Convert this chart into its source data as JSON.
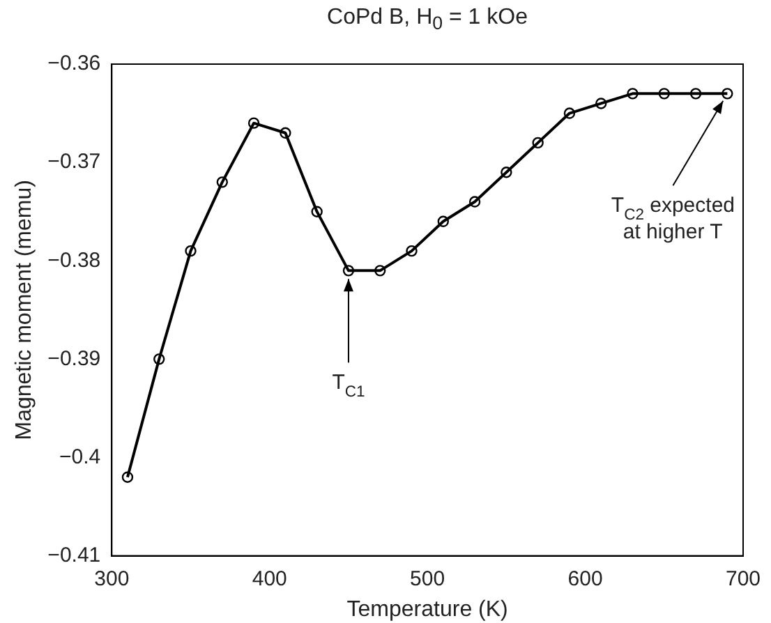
{
  "chart_data": {
    "type": "line",
    "title": "CoPd B, H$_{0}$ = 1 kOe",
    "xlabel": "Temperature (K)",
    "ylabel": "Magnetic moment (memu)",
    "x": [
      310,
      330,
      350,
      370,
      390,
      410,
      430,
      450,
      470,
      490,
      510,
      530,
      550,
      570,
      590,
      610,
      630,
      650,
      670,
      690
    ],
    "series": [
      {
        "color": "#000000",
        "values": [
          -0.402,
          -0.39,
          -0.379,
          -0.372,
          -0.366,
          -0.367,
          -0.375,
          -0.381,
          -0.381,
          -0.379,
          -0.376,
          -0.374,
          -0.371,
          -0.368,
          -0.365,
          -0.364,
          -0.363,
          -0.363,
          -0.363,
          -0.363
        ]
      }
    ],
    "xlim": [
      300,
      700
    ],
    "xticks": [
      300,
      400,
      500,
      600,
      700
    ],
    "ylim": [
      -0.41,
      -0.36
    ],
    "yticks": [
      {
        "value": -0.41,
        "label": "−0.41"
      },
      {
        "value": -0.4,
        "label": "−0.4"
      },
      {
        "value": -0.39,
        "label": "−0.39"
      },
      {
        "value": -0.38,
        "label": "−0.38"
      },
      {
        "value": -0.37,
        "label": "−0.37"
      },
      {
        "value": -0.36,
        "label": "−0.36"
      }
    ],
    "annotations": [
      {
        "text": "T$_{C1}$",
        "x": 450,
        "y": -0.381
      },
      {
        "text": "T$_{C2}$ expected\nat higher T",
        "x": 690,
        "y": -0.363
      }
    ],
    "grid": false,
    "legend": false,
    "marker": "circle",
    "line_style": "solid"
  }
}
